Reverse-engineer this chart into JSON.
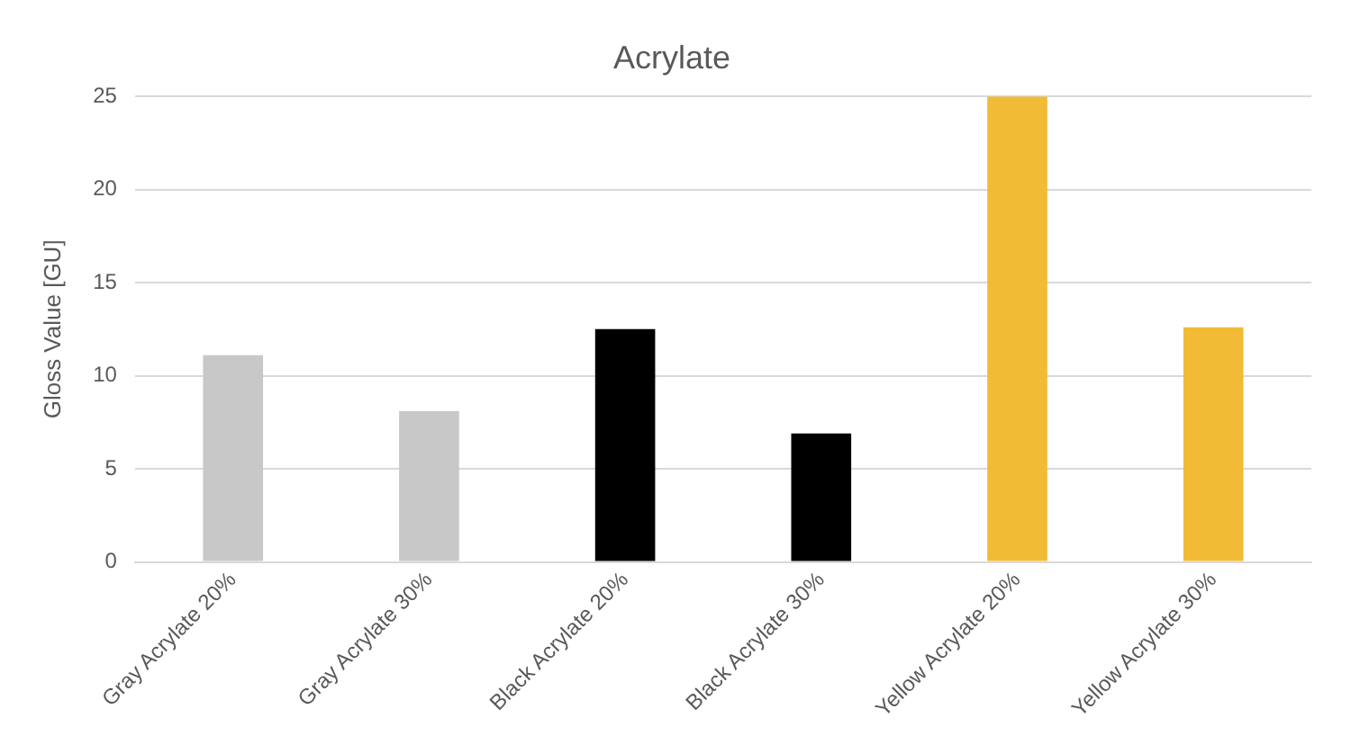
{
  "chart_data": {
    "type": "bar",
    "title": "Acrylate",
    "ylabel": "Gloss Value [GU]",
    "categories": [
      "Gray Acrylate 20%",
      "Gray Acrylate 30%",
      "Black Acrylate 20%",
      "Black Acrylate 30%",
      "Yellow Acrylate 20%",
      "Yellow Acrylate 30%"
    ],
    "values": [
      11.1,
      8.1,
      12.5,
      6.9,
      25,
      12.6
    ],
    "colors": [
      "#c8c8c8",
      "#c8c8c8",
      "#000000",
      "#000000",
      "#f2bb35",
      "#f2bb35"
    ],
    "ylim": [
      0,
      25
    ],
    "yticks": [
      0,
      5,
      10,
      15,
      20,
      25
    ],
    "grid": "y"
  }
}
